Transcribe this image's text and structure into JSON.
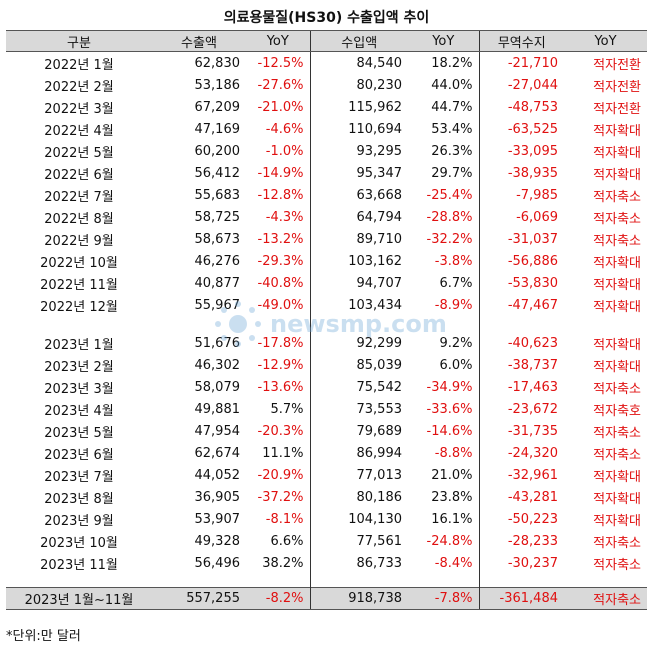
{
  "title": "의료용물질(HS30) 수출입액 추이",
  "headers": [
    "구분",
    "수출액",
    "YoY",
    "수입액",
    "YoY",
    "무역수지",
    "YoY"
  ],
  "rows_2022": [
    {
      "period": "2022년 1월",
      "export": "62,830",
      "export_yoy": "-12.5%",
      "import": "84,540",
      "import_yoy": "18.2%",
      "balance": "-21,710",
      "status": "적자전환"
    },
    {
      "period": "2022년 2월",
      "export": "53,186",
      "export_yoy": "-27.6%",
      "import": "80,230",
      "import_yoy": "44.0%",
      "balance": "-27,044",
      "status": "적자전환"
    },
    {
      "period": "2022년 3월",
      "export": "67,209",
      "export_yoy": "-21.0%",
      "import": "115,962",
      "import_yoy": "44.7%",
      "balance": "-48,753",
      "status": "적자전환"
    },
    {
      "period": "2022년 4월",
      "export": "47,169",
      "export_yoy": "-4.6%",
      "import": "110,694",
      "import_yoy": "53.4%",
      "balance": "-63,525",
      "status": "적자확대"
    },
    {
      "period": "2022년 5월",
      "export": "60,200",
      "export_yoy": "-1.0%",
      "import": "93,295",
      "import_yoy": "26.3%",
      "balance": "-33,095",
      "status": "적자확대"
    },
    {
      "period": "2022년 6월",
      "export": "56,412",
      "export_yoy": "-14.9%",
      "import": "95,347",
      "import_yoy": "29.7%",
      "balance": "-38,935",
      "status": "적자확대"
    },
    {
      "period": "2022년 7월",
      "export": "55,683",
      "export_yoy": "-12.8%",
      "import": "63,668",
      "import_yoy": "-25.4%",
      "balance": "-7,985",
      "status": "적자축소"
    },
    {
      "period": "2022년 8월",
      "export": "58,725",
      "export_yoy": "-4.3%",
      "import": "64,794",
      "import_yoy": "-28.8%",
      "balance": "-6,069",
      "status": "적자축소"
    },
    {
      "period": "2022년 9월",
      "export": "58,673",
      "export_yoy": "-13.2%",
      "import": "89,710",
      "import_yoy": "-32.2%",
      "balance": "-31,037",
      "status": "적자축소"
    },
    {
      "period": "2022년 10월",
      "export": "46,276",
      "export_yoy": "-29.3%",
      "import": "103,162",
      "import_yoy": "-3.8%",
      "balance": "-56,886",
      "status": "적자확대"
    },
    {
      "period": "2022년 11월",
      "export": "40,877",
      "export_yoy": "-40.8%",
      "import": "94,707",
      "import_yoy": "6.7%",
      "balance": "-53,830",
      "status": "적자확대"
    },
    {
      "period": "2022년 12월",
      "export": "55,967",
      "export_yoy": "-49.0%",
      "import": "103,434",
      "import_yoy": "-8.9%",
      "balance": "-47,467",
      "status": "적자확대"
    }
  ],
  "rows_2023": [
    {
      "period": "2023년 1월",
      "export": "51,676",
      "export_yoy": "-17.8%",
      "import": "92,299",
      "import_yoy": "9.2%",
      "balance": "-40,623",
      "status": "적자확대"
    },
    {
      "period": "2023년 2월",
      "export": "46,302",
      "export_yoy": "-12.9%",
      "import": "85,039",
      "import_yoy": "6.0%",
      "balance": "-38,737",
      "status": "적자확대"
    },
    {
      "period": "2023년 3월",
      "export": "58,079",
      "export_yoy": "-13.6%",
      "import": "75,542",
      "import_yoy": "-34.9%",
      "balance": "-17,463",
      "status": "적자축소"
    },
    {
      "period": "2023년 4월",
      "export": "49,881",
      "export_yoy": "5.7%",
      "import": "73,553",
      "import_yoy": "-33.6%",
      "balance": "-23,672",
      "status": "적자축호"
    },
    {
      "period": "2023년 5월",
      "export": "47,954",
      "export_yoy": "-20.3%",
      "import": "79,689",
      "import_yoy": "-14.6%",
      "balance": "-31,735",
      "status": "적자축소"
    },
    {
      "period": "2023년 6월",
      "export": "62,674",
      "export_yoy": "11.1%",
      "import": "86,994",
      "import_yoy": "-8.8%",
      "balance": "-24,320",
      "status": "적자축소"
    },
    {
      "period": "2023년 7월",
      "export": "44,052",
      "export_yoy": "-20.9%",
      "import": "77,013",
      "import_yoy": "21.0%",
      "balance": "-32,961",
      "status": "적자확대"
    },
    {
      "period": "2023년 8월",
      "export": "36,905",
      "export_yoy": "-37.2%",
      "import": "80,186",
      "import_yoy": "23.8%",
      "balance": "-43,281",
      "status": "적자확대"
    },
    {
      "period": "2023년 9월",
      "export": "53,907",
      "export_yoy": "-8.1%",
      "import": "104,130",
      "import_yoy": "16.1%",
      "balance": "-50,223",
      "status": "적자확대"
    },
    {
      "period": "2023년 10월",
      "export": "49,328",
      "export_yoy": "6.6%",
      "import": "77,561",
      "import_yoy": "-24.8%",
      "balance": "-28,233",
      "status": "적자축소"
    },
    {
      "period": "2023년 11월",
      "export": "56,496",
      "export_yoy": "38.2%",
      "import": "86,733",
      "import_yoy": "-8.4%",
      "balance": "-30,237",
      "status": "적자축소"
    }
  ],
  "summary": {
    "period": "2023년 1월~11월",
    "export": "557,255",
    "export_yoy": "-8.2%",
    "import": "918,738",
    "import_yoy": "-7.8%",
    "balance": "-361,484",
    "status": "적자축소"
  },
  "note": "*단위:만 달러",
  "watermark": "newsmp.com",
  "colors": {
    "negative": "#e01010",
    "header_bg": "#d9d9d9"
  }
}
